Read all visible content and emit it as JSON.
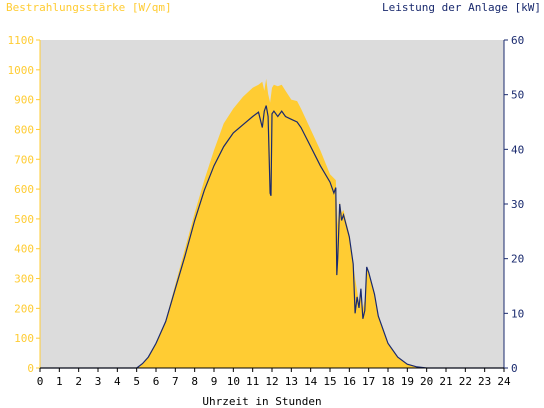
{
  "chart_data": {
    "type": "area",
    "title": "",
    "left_axis_label": "Bestrahlungsstärke [W/qm]",
    "right_axis_label": "Leistung der Anlage [kW]",
    "xlabel": "Uhrzeit in Stunden",
    "x_range": [
      0,
      24
    ],
    "x_ticks": [
      "0",
      "1",
      "2",
      "3",
      "4",
      "5",
      "6",
      "7",
      "8",
      "9",
      "10",
      "11",
      "12",
      "13",
      "14",
      "15",
      "16",
      "17",
      "18",
      "19",
      "20",
      "21",
      "22",
      "23",
      "24"
    ],
    "y_left_range": [
      0,
      1100
    ],
    "y_left_ticks": [
      "0",
      "100",
      "200",
      "300",
      "400",
      "500",
      "600",
      "700",
      "800",
      "900",
      "1000",
      "1100"
    ],
    "y_right_range": [
      0,
      60
    ],
    "y_right_ticks": [
      "0",
      "10",
      "20",
      "30",
      "40",
      "50",
      "60"
    ],
    "grid": false,
    "background_color": "#dcdcdc",
    "left_axis_color": "#ffcc33",
    "right_axis_color": "#1a2a6e",
    "series": [
      {
        "axis": "left",
        "kind": "area",
        "color": "#ffcc33",
        "x": [
          0,
          5.0,
          5.3,
          5.6,
          6.0,
          6.5,
          7.0,
          7.5,
          8.0,
          8.5,
          9.0,
          9.5,
          10.0,
          10.5,
          11.0,
          11.3,
          11.5,
          11.6,
          11.7,
          11.8,
          11.9,
          12.0,
          12.1,
          12.3,
          12.5,
          12.7,
          13.0,
          13.3,
          13.5,
          14.0,
          14.5,
          15.0,
          15.3,
          15.4,
          15.5,
          15.6,
          15.7,
          15.8,
          16.0,
          16.3,
          16.5,
          16.6,
          16.7,
          16.8,
          16.9,
          17.0,
          17.3,
          17.5,
          18.0,
          18.5,
          19.0,
          19.5,
          20.0,
          24
        ],
        "y": [
          0,
          0,
          15,
          35,
          80,
          160,
          280,
          400,
          520,
          630,
          730,
          820,
          870,
          910,
          940,
          950,
          960,
          930,
          970,
          920,
          890,
          940,
          950,
          945,
          950,
          930,
          900,
          895,
          870,
          800,
          730,
          650,
          630,
          480,
          560,
          520,
          530,
          500,
          450,
          300,
          220,
          260,
          200,
          230,
          340,
          320,
          250,
          170,
          80,
          35,
          12,
          4,
          0,
          0
        ]
      },
      {
        "axis": "right",
        "kind": "line",
        "color": "#1a2a6e",
        "x": [
          0,
          5.0,
          5.3,
          5.6,
          6.0,
          6.5,
          7.0,
          7.5,
          8.0,
          8.5,
          9.0,
          9.5,
          10.0,
          10.5,
          11.0,
          11.3,
          11.5,
          11.6,
          11.7,
          11.8,
          11.9,
          11.95,
          12.0,
          12.1,
          12.3,
          12.5,
          12.7,
          13.0,
          13.3,
          13.5,
          14.0,
          14.5,
          15.0,
          15.2,
          15.3,
          15.35,
          15.4,
          15.5,
          15.6,
          15.7,
          16.0,
          16.2,
          16.3,
          16.4,
          16.5,
          16.6,
          16.7,
          16.8,
          16.9,
          17.0,
          17.3,
          17.5,
          18.0,
          18.5,
          19.0,
          19.5,
          20.0,
          24
        ],
        "y": [
          0,
          0,
          0.8,
          2.0,
          4.5,
          8.5,
          14.5,
          20.5,
          27.0,
          32.5,
          37.0,
          40.5,
          43.0,
          44.5,
          46.0,
          46.8,
          44.0,
          47.0,
          48.0,
          46.0,
          32.0,
          31.5,
          46.5,
          47.0,
          46.0,
          47.0,
          46.0,
          45.5,
          45.0,
          44.0,
          40.5,
          37.0,
          34.0,
          32.0,
          33.0,
          17.0,
          20.0,
          30.0,
          27.0,
          28.0,
          24.0,
          19.0,
          10.0,
          13.0,
          11.0,
          14.5,
          9.0,
          10.5,
          18.5,
          17.5,
          13.5,
          9.5,
          4.5,
          2.0,
          0.7,
          0.2,
          0,
          0
        ]
      }
    ]
  }
}
